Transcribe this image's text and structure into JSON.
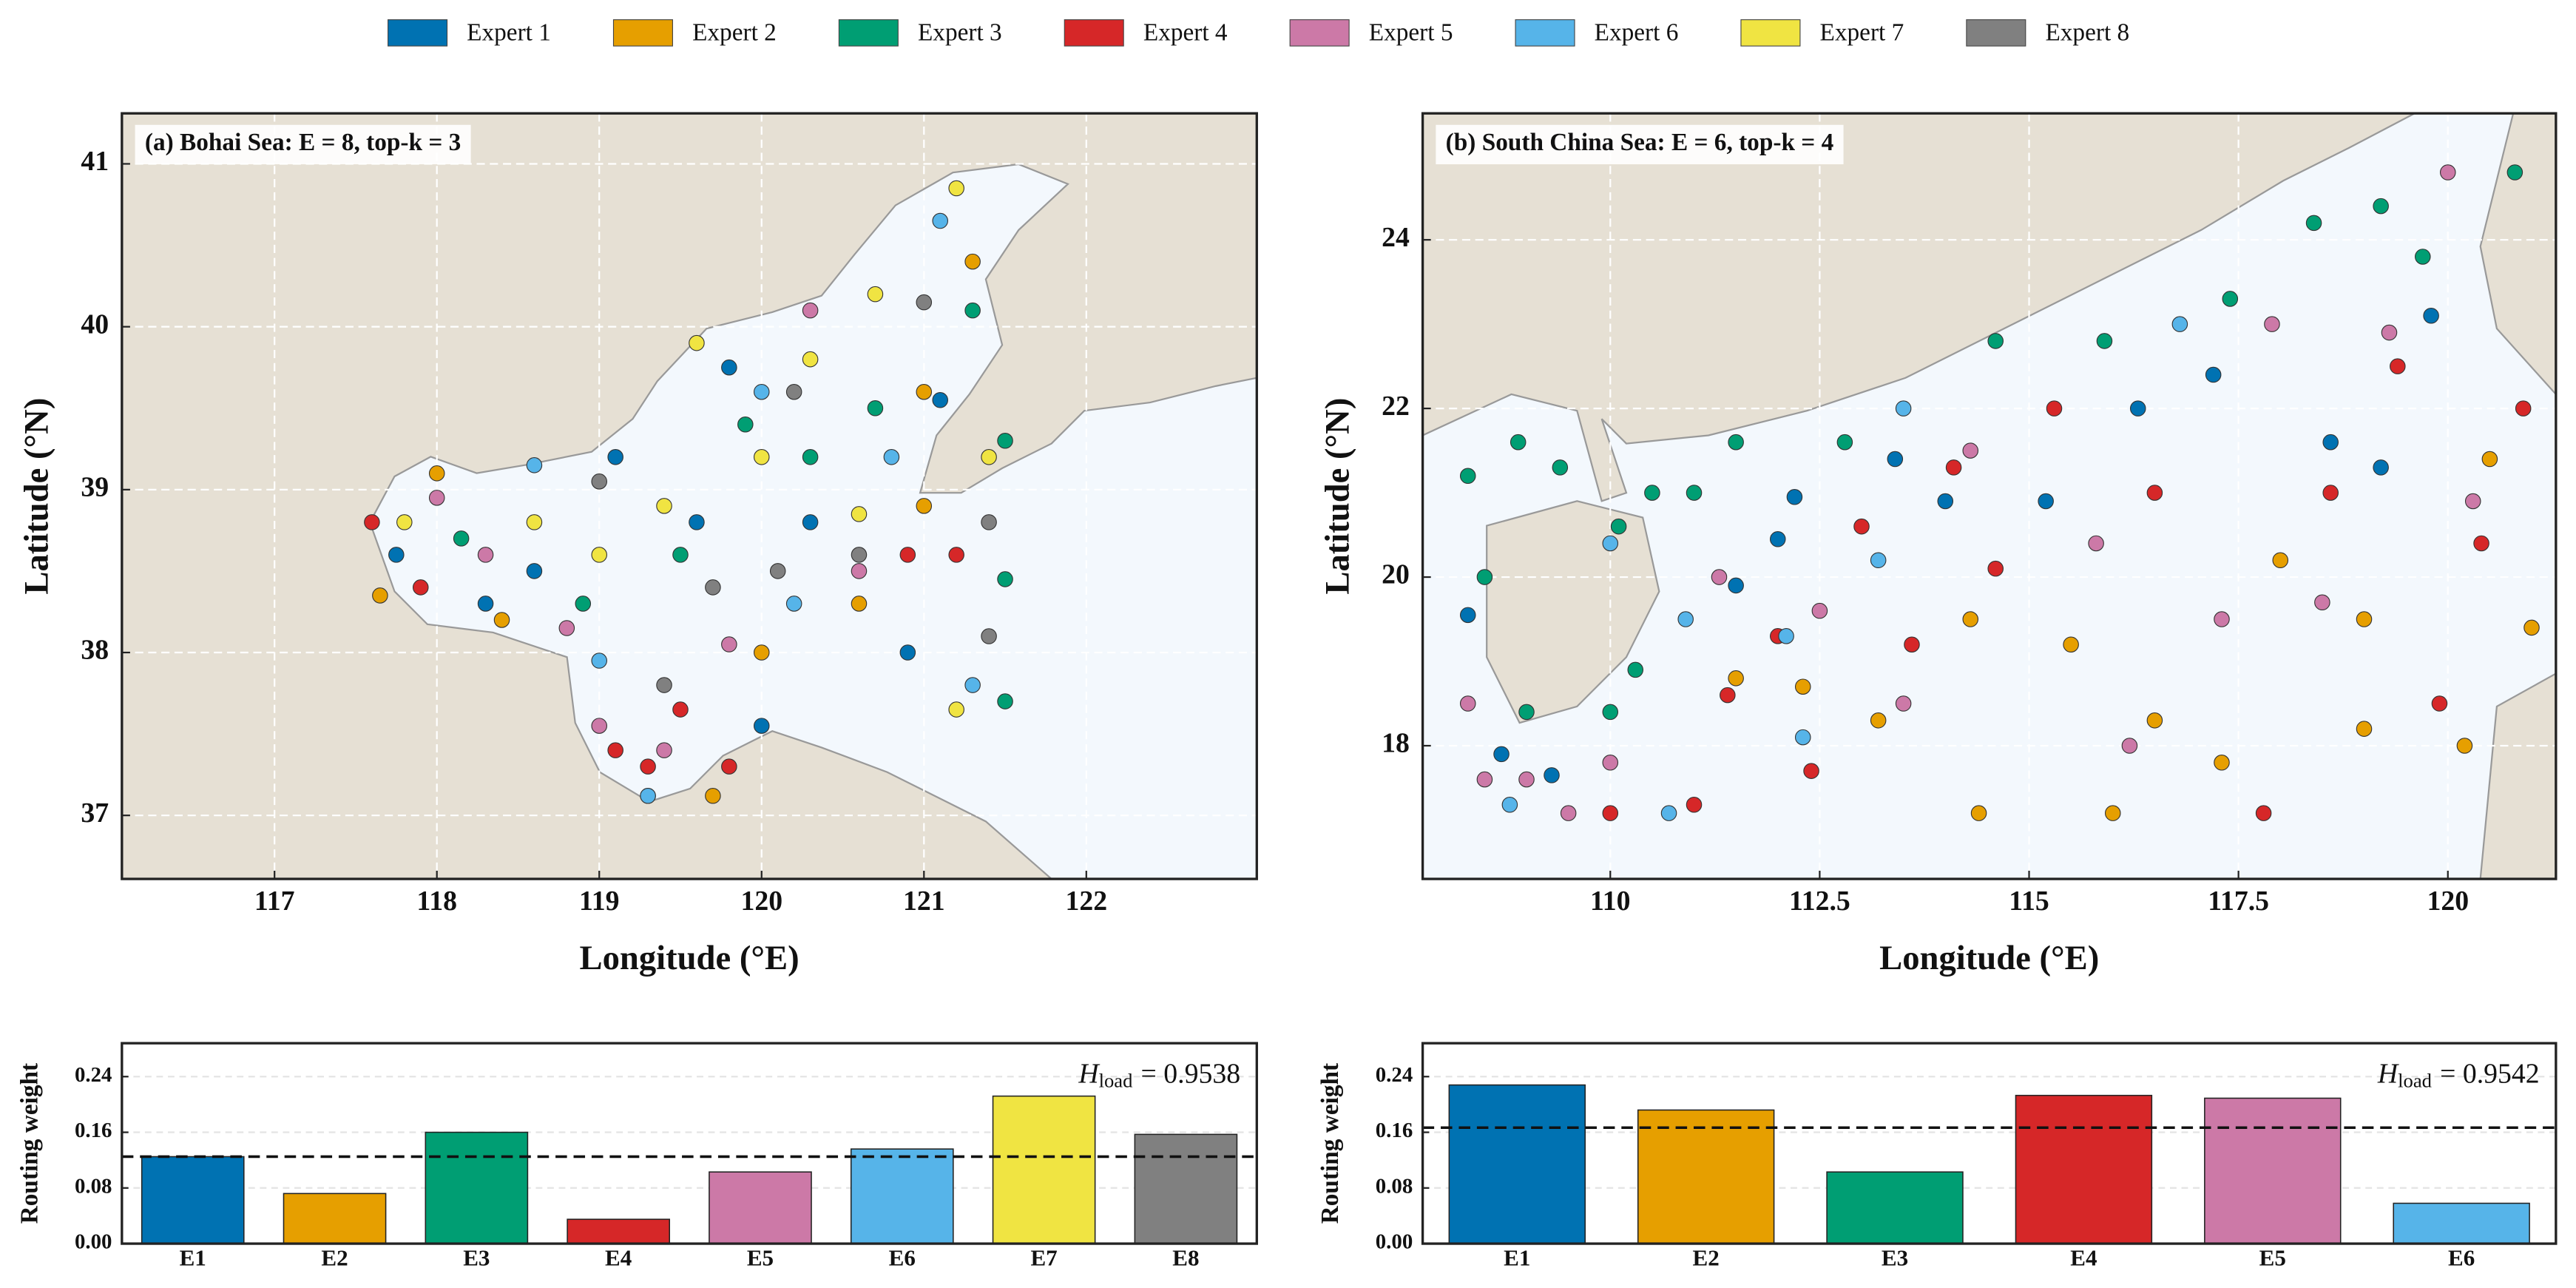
{
  "chart_data": [
    {
      "type": "scatter",
      "title": "(a) Bohai Sea: E = 8, top-k = 3",
      "xlabel": "Longitude (°E)",
      "ylabel": "Latitude (°N)",
      "xlim": [
        116.06,
        123.05
      ],
      "ylim": [
        36.61,
        41.31
      ],
      "xticks": [
        117,
        118,
        119,
        120,
        121,
        122
      ],
      "yticks": [
        37,
        38,
        39,
        40,
        41
      ],
      "grid": true,
      "series": [
        {
          "name": "Expert 1",
          "color": "#0072b2",
          "x": [
            117.75,
            118.3,
            118.6,
            119.1,
            119.6,
            120.0,
            120.3,
            120.9,
            121.1,
            119.8
          ],
          "y": [
            38.6,
            38.3,
            38.5,
            39.2,
            38.8,
            37.55,
            38.8,
            38.0,
            39.55,
            39.75
          ]
        },
        {
          "name": "Expert 2",
          "color": "#e69f00",
          "x": [
            117.65,
            118.0,
            118.4,
            119.3,
            119.7,
            120.0,
            120.6,
            121.0,
            121.3,
            121.0
          ],
          "y": [
            38.35,
            39.1,
            38.2,
            37.12,
            37.12,
            38.0,
            38.3,
            38.9,
            40.4,
            39.6
          ]
        },
        {
          "name": "Expert 3",
          "color": "#009e73",
          "x": [
            118.15,
            118.9,
            119.5,
            119.9,
            120.3,
            120.7,
            121.5,
            121.5,
            121.3,
            121.5
          ],
          "y": [
            38.7,
            38.3,
            38.6,
            39.4,
            39.2,
            39.5,
            38.45,
            39.3,
            40.1,
            37.7
          ]
        },
        {
          "name": "Expert 4",
          "color": "#d62728",
          "x": [
            117.6,
            117.9,
            119.1,
            119.5,
            119.3,
            119.8,
            121.2,
            120.9
          ],
          "y": [
            38.8,
            38.4,
            37.4,
            37.65,
            37.3,
            37.3,
            38.6,
            38.6
          ]
        },
        {
          "name": "Expert 5",
          "color": "#cc79a7",
          "x": [
            118.0,
            118.3,
            118.8,
            119.0,
            119.4,
            119.8,
            120.3,
            120.6
          ],
          "y": [
            38.95,
            38.6,
            38.15,
            37.55,
            37.4,
            38.05,
            40.1,
            38.5
          ]
        },
        {
          "name": "Expert 6",
          "color": "#56b4e9",
          "x": [
            118.6,
            119.3,
            119.0,
            120.0,
            120.8,
            121.1,
            121.3,
            120.2
          ],
          "y": [
            39.15,
            37.12,
            37.95,
            39.6,
            39.2,
            40.65,
            37.8,
            38.3
          ]
        },
        {
          "name": "Expert 7",
          "color": "#f0e442",
          "x": [
            117.8,
            118.6,
            119.0,
            119.4,
            119.6,
            120.0,
            120.3,
            120.7,
            121.2,
            121.4,
            121.2,
            120.6
          ],
          "y": [
            38.8,
            38.8,
            38.6,
            38.9,
            39.9,
            39.2,
            39.8,
            40.2,
            40.85,
            39.2,
            37.65,
            38.85
          ]
        },
        {
          "name": "Expert 8",
          "color": "#808080",
          "x": [
            119.0,
            119.4,
            119.7,
            120.2,
            120.6,
            121.0,
            121.4,
            121.4,
            120.1
          ],
          "y": [
            39.05,
            37.8,
            38.4,
            39.6,
            38.6,
            40.15,
            38.1,
            38.8,
            38.5
          ]
        }
      ]
    },
    {
      "type": "scatter",
      "title": "(b) South China Sea: E = 6, top-k = 4",
      "xlabel": "Longitude (°E)",
      "ylabel": "Latitude (°N)",
      "xlim": [
        107.76,
        121.29
      ],
      "ylim": [
        16.42,
        25.5
      ],
      "xticks": [
        110,
        112.5,
        115,
        117.5,
        120
      ],
      "yticks": [
        18,
        20,
        22,
        24
      ],
      "grid": true,
      "series": [
        {
          "name": "Expert 1",
          "color": "#0072b2",
          "x": [
            108.3,
            108.7,
            109.3,
            111.5,
            112.2,
            112.0,
            113.4,
            115.2,
            116.3,
            117.2,
            118.6,
            119.2,
            119.8,
            114.0
          ],
          "y": [
            19.55,
            17.9,
            17.65,
            19.9,
            20.95,
            20.45,
            21.4,
            20.9,
            22.0,
            22.4,
            21.6,
            21.3,
            23.1,
            20.9
          ]
        },
        {
          "name": "Expert 2",
          "color": "#e69f00",
          "x": [
            111.5,
            112.3,
            113.2,
            114.3,
            115.5,
            116.5,
            117.3,
            118.0,
            119.0,
            120.2,
            119.0,
            120.5,
            121.0,
            114.4,
            116.0
          ],
          "y": [
            18.8,
            18.7,
            18.3,
            19.5,
            19.2,
            18.3,
            17.8,
            20.2,
            18.2,
            18.0,
            19.5,
            21.4,
            19.4,
            17.2,
            17.2
          ]
        },
        {
          "name": "Expert 3",
          "color": "#009e73",
          "x": [
            108.3,
            108.5,
            108.9,
            109.4,
            110.1,
            110.5,
            111.0,
            111.5,
            112.8,
            114.6,
            115.9,
            117.4,
            118.4,
            119.2,
            120.8,
            119.7,
            110.3,
            109.0,
            110.0
          ],
          "y": [
            21.2,
            20.0,
            21.6,
            21.3,
            20.6,
            21.0,
            21.0,
            21.6,
            21.6,
            22.8,
            22.8,
            23.3,
            24.2,
            24.4,
            24.8,
            23.8,
            18.9,
            18.4,
            18.4
          ]
        },
        {
          "name": "Expert 4",
          "color": "#d62728",
          "x": [
            111.4,
            111.0,
            112.0,
            112.4,
            113.0,
            113.6,
            114.1,
            114.6,
            115.3,
            116.5,
            117.8,
            118.6,
            119.4,
            120.4,
            120.9,
            119.9,
            110.0
          ],
          "y": [
            18.6,
            17.3,
            19.3,
            17.7,
            20.6,
            19.2,
            21.3,
            20.1,
            22.0,
            21.0,
            17.2,
            21.0,
            22.5,
            20.4,
            22.0,
            18.5,
            17.2
          ]
        },
        {
          "name": "Expert 5",
          "color": "#cc79a7",
          "x": [
            108.3,
            108.5,
            109.0,
            109.5,
            110.0,
            111.3,
            112.5,
            113.5,
            114.3,
            115.8,
            116.2,
            117.3,
            118.5,
            119.3,
            120.0,
            120.3,
            117.9
          ],
          "y": [
            18.5,
            17.6,
            17.6,
            17.2,
            17.8,
            20.0,
            19.6,
            18.5,
            21.5,
            20.4,
            18.0,
            19.5,
            19.7,
            22.9,
            24.8,
            20.9,
            23.0
          ]
        },
        {
          "name": "Expert 6",
          "color": "#56b4e9",
          "x": [
            108.8,
            110.7,
            110.9,
            112.1,
            112.3,
            113.2,
            113.5,
            116.8,
            110.0
          ],
          "y": [
            17.3,
            17.2,
            19.5,
            19.3,
            18.1,
            20.2,
            22.0,
            23.0,
            20.4
          ]
        }
      ]
    },
    {
      "type": "bar",
      "ylabel": "Routing weight",
      "categories": [
        "E1",
        "E2",
        "E3",
        "E4",
        "E5",
        "E6",
        "E7",
        "E8"
      ],
      "values": [
        0.125,
        0.072,
        0.16,
        0.035,
        0.103,
        0.136,
        0.212,
        0.157
      ],
      "colors": [
        "#0072b2",
        "#e69f00",
        "#009e73",
        "#d62728",
        "#cc79a7",
        "#56b4e9",
        "#f0e442",
        "#808080"
      ],
      "reference_line": 0.125,
      "annotation": {
        "symbol": "H",
        "subscript": "load",
        "text": "= 0.9538"
      },
      "ylim": [
        0,
        0.288
      ],
      "yticks": [
        {
          "value": 0,
          "label": "0.00"
        },
        {
          "value": 0.08,
          "label": "0.08"
        },
        {
          "value": 0.16,
          "label": "0.16"
        },
        {
          "value": 0.24,
          "label": "0.24"
        }
      ],
      "grid": true
    },
    {
      "type": "bar",
      "ylabel": "Routing weight",
      "categories": [
        "E1",
        "E2",
        "E3",
        "E4",
        "E5",
        "E6"
      ],
      "values": [
        0.228,
        0.192,
        0.103,
        0.213,
        0.209,
        0.058
      ],
      "colors": [
        "#0072b2",
        "#e69f00",
        "#009e73",
        "#d62728",
        "#cc79a7",
        "#56b4e9"
      ],
      "reference_line": 0.1667,
      "annotation": {
        "symbol": "H",
        "subscript": "load",
        "text": "= 0.9542"
      },
      "ylim": [
        0,
        0.288
      ],
      "yticks": [
        {
          "value": 0,
          "label": "0.00"
        },
        {
          "value": 0.08,
          "label": "0.08"
        },
        {
          "value": 0.16,
          "label": "0.16"
        },
        {
          "value": 0.24,
          "label": "0.24"
        }
      ],
      "grid": true
    }
  ]
}
